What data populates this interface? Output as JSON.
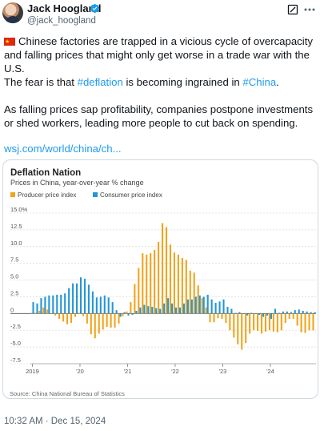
{
  "author": {
    "name": "Jack Hoogland",
    "handle": "@jack_hoogland"
  },
  "tweet": {
    "para1": "Chinese factories are trapped in a vicious cycle of overcapacity and falling prices that might only get worse in a trade war with the U.S.",
    "para2_prefix": "The fear is that ",
    "para2_tag1": "#deflation",
    "para2_mid": " is becoming ingrained in ",
    "para2_tag2": "#China",
    "para2_suffix": ".",
    "para3": "As falling prices sap profitability, companies postpone investments or shed workers, leading more people to cut back on spending.",
    "link": "wsj.com/world/china/ch..."
  },
  "timestamp": "10:32 AM · Dec 15, 2024",
  "icons": {
    "verified": "verified-badge-icon",
    "grok": "grok-icon",
    "more": "more-options-icon",
    "flag": "china-flag-icon"
  },
  "colors": {
    "producer": "#f2a31b",
    "consumer": "#2496d6",
    "link": "#1d9bf0"
  },
  "chart_data": {
    "type": "bar",
    "title": "Deflation Nation",
    "subtitle": "Prices in China, year-over-year % change",
    "source": "Source: China National Bureau of Statistics",
    "ylim": [
      -7.5,
      15
    ],
    "yticks": [
      "15.0%",
      "12.5",
      "10.0",
      "7.5",
      "5.0",
      "2.5",
      "0",
      "-2.5",
      "-5.0",
      "-7.5"
    ],
    "ytick_values": [
      15,
      12.5,
      10,
      7.5,
      5,
      2.5,
      0,
      -2.5,
      -5,
      -7.5
    ],
    "xticks": [
      "2019",
      "'20",
      "'21",
      "'22",
      "'23",
      "'24"
    ],
    "xtick_months": [
      0,
      12,
      24,
      36,
      48,
      60
    ],
    "start": "2019-01",
    "series": [
      {
        "name": "Producer price index",
        "values": [
          0.1,
          0.1,
          0.4,
          0.9,
          0.6,
          0.0,
          -0.3,
          -0.8,
          -1.2,
          -1.6,
          -1.4,
          -0.5,
          0.1,
          -0.4,
          -1.5,
          -3.1,
          -3.7,
          -3.0,
          -2.4,
          -2.0,
          -2.1,
          -2.1,
          -1.5,
          -0.4,
          0.3,
          1.7,
          4.4,
          6.8,
          9.0,
          8.8,
          9.0,
          9.5,
          10.7,
          13.5,
          12.9,
          10.3,
          9.1,
          8.8,
          8.3,
          8.0,
          6.4,
          6.1,
          4.2,
          2.3,
          0.9,
          -1.3,
          -1.3,
          -0.7,
          -0.8,
          -1.4,
          -2.5,
          -3.6,
          -4.6,
          -5.4,
          -4.4,
          -3.0,
          -2.5,
          -2.6,
          -3.0,
          -2.7,
          -2.5,
          -2.7,
          -2.8,
          -2.5,
          -1.4,
          -0.8,
          -0.8,
          -1.8,
          -2.8,
          -2.9,
          -2.5,
          -2.5
        ]
      },
      {
        "name": "Consumer price index",
        "values": [
          1.7,
          1.5,
          2.3,
          2.5,
          2.7,
          2.7,
          2.8,
          2.8,
          3.0,
          3.8,
          4.5,
          4.5,
          5.4,
          5.2,
          4.3,
          3.3,
          2.4,
          2.5,
          2.7,
          2.4,
          1.7,
          0.5,
          -0.5,
          0.2,
          -0.3,
          -0.2,
          0.4,
          0.9,
          1.3,
          1.1,
          1.0,
          0.8,
          0.7,
          1.5,
          2.3,
          1.5,
          0.9,
          0.9,
          1.5,
          2.1,
          2.1,
          2.5,
          2.7,
          2.5,
          2.8,
          2.1,
          1.6,
          1.8,
          2.1,
          1.0,
          0.7,
          0.1,
          0.2,
          0.0,
          -0.3,
          0.1,
          0.0,
          -0.2,
          -0.5,
          -0.3,
          -0.8,
          0.7,
          0.1,
          0.3,
          0.3,
          0.2,
          0.5,
          0.6,
          0.4,
          0.3,
          0.2,
          0.2
        ]
      }
    ],
    "grid": true,
    "legend_position": "top-left"
  }
}
